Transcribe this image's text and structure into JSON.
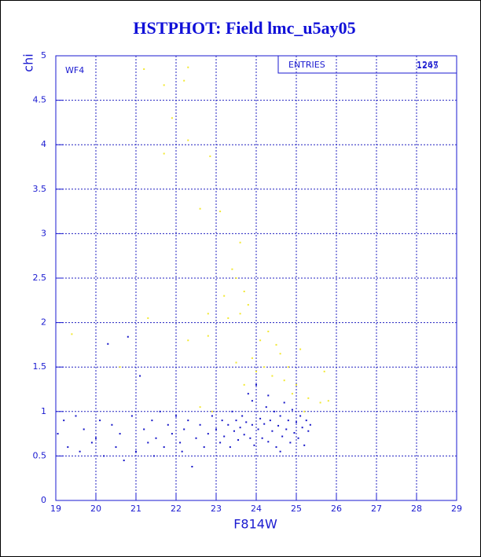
{
  "chart_data": {
    "type": "scatter",
    "title": "HSTPHOT: Field lmc_u5ay05",
    "x_label": "F814W",
    "y_label": "chi",
    "annotation": "WF4",
    "stats": {
      "label": "ENTRIES",
      "values": [
        1267,
        1245
      ]
    },
    "xlim": [
      19,
      29
    ],
    "ylim": [
      0,
      5
    ],
    "xticks": [
      19,
      20,
      21,
      22,
      23,
      24,
      25,
      26,
      27,
      28,
      29
    ],
    "yticks": [
      0,
      0.5,
      1,
      1.5,
      2,
      2.5,
      3,
      3.5,
      4,
      4.5,
      5
    ],
    "grid": true,
    "series": [
      {
        "color": "#f2e830",
        "x": [
          19.4,
          21.2,
          21.7,
          22.3,
          22.2,
          21.9,
          21.7,
          22.3,
          22.85,
          22.6,
          23.1,
          23.6,
          23.4,
          23.5,
          23.2,
          23.7,
          23.8,
          22.8,
          23.3,
          21.3,
          23.6,
          24.3,
          24.5,
          24.1,
          23.9,
          24.6,
          24.8,
          25.1,
          24.2,
          23.5,
          24.4,
          24.7,
          25.0,
          23.7,
          24.9,
          25.3,
          25.6,
          25.8,
          25.7,
          22.3,
          22.8,
          20.6,
          22.6,
          22.9,
          25.2,
          24.0
        ],
        "values": [
          1.87,
          4.85,
          4.67,
          4.87,
          4.72,
          4.3,
          3.9,
          4.05,
          3.87,
          3.28,
          3.25,
          2.9,
          2.6,
          2.5,
          2.3,
          2.35,
          2.2,
          2.1,
          2.05,
          2.05,
          2.1,
          1.9,
          1.75,
          1.8,
          1.6,
          1.65,
          1.5,
          1.7,
          1.5,
          1.55,
          1.4,
          1.35,
          1.3,
          1.3,
          1.2,
          1.15,
          1.1,
          1.12,
          1.45,
          1.8,
          1.85,
          1.5,
          1.05,
          1.0,
          1.0,
          1.45
        ]
      },
      {
        "color": "#1515c8",
        "x": [
          19.05,
          19.2,
          19.3,
          19.5,
          19.6,
          19.7,
          19.9,
          20.0,
          20.1,
          20.2,
          20.3,
          20.4,
          20.5,
          20.6,
          20.8,
          20.9,
          21.0,
          21.1,
          21.2,
          21.3,
          21.4,
          21.5,
          21.6,
          21.7,
          21.8,
          21.9,
          22.0,
          22.1,
          22.2,
          22.3,
          22.4,
          22.5,
          22.6,
          22.7,
          22.8,
          22.9,
          23.0,
          23.1,
          23.15,
          23.2,
          23.3,
          23.35,
          23.4,
          23.45,
          23.5,
          23.55,
          23.6,
          23.65,
          23.7,
          23.75,
          23.8,
          23.85,
          23.9,
          23.95,
          24.0,
          24.05,
          24.1,
          24.15,
          24.2,
          24.25,
          24.3,
          24.35,
          24.4,
          24.45,
          24.5,
          24.55,
          24.6,
          24.65,
          24.7,
          24.75,
          24.8,
          24.85,
          24.9,
          24.95,
          25.0,
          25.05,
          25.1,
          25.15,
          25.2,
          25.25,
          25.3,
          25.35,
          22.15,
          21.45,
          20.7,
          24.6,
          23.9,
          24.3
        ],
        "values": [
          0.75,
          0.9,
          0.6,
          0.95,
          0.55,
          0.8,
          0.65,
          0.7,
          0.9,
          0.5,
          1.76,
          0.85,
          0.6,
          0.75,
          1.84,
          0.95,
          0.55,
          1.4,
          0.8,
          0.65,
          0.9,
          0.7,
          1.0,
          0.6,
          0.85,
          0.75,
          0.95,
          0.65,
          0.8,
          0.9,
          0.38,
          0.7,
          0.85,
          0.6,
          0.75,
          0.95,
          0.8,
          0.65,
          0.9,
          0.72,
          0.85,
          0.6,
          1.0,
          0.78,
          0.9,
          0.68,
          0.82,
          0.95,
          0.74,
          0.88,
          1.2,
          0.7,
          0.85,
          0.62,
          1.3,
          0.8,
          0.92,
          0.7,
          0.86,
          1.05,
          0.66,
          0.9,
          0.78,
          1.0,
          0.6,
          0.84,
          0.95,
          0.72,
          1.1,
          0.8,
          0.9,
          0.65,
          1.02,
          0.76,
          0.88,
          0.7,
          0.95,
          0.82,
          0.62,
          0.9,
          0.78,
          0.85,
          0.55,
          0.5,
          0.45,
          0.55,
          1.12,
          1.18
        ]
      }
    ]
  }
}
